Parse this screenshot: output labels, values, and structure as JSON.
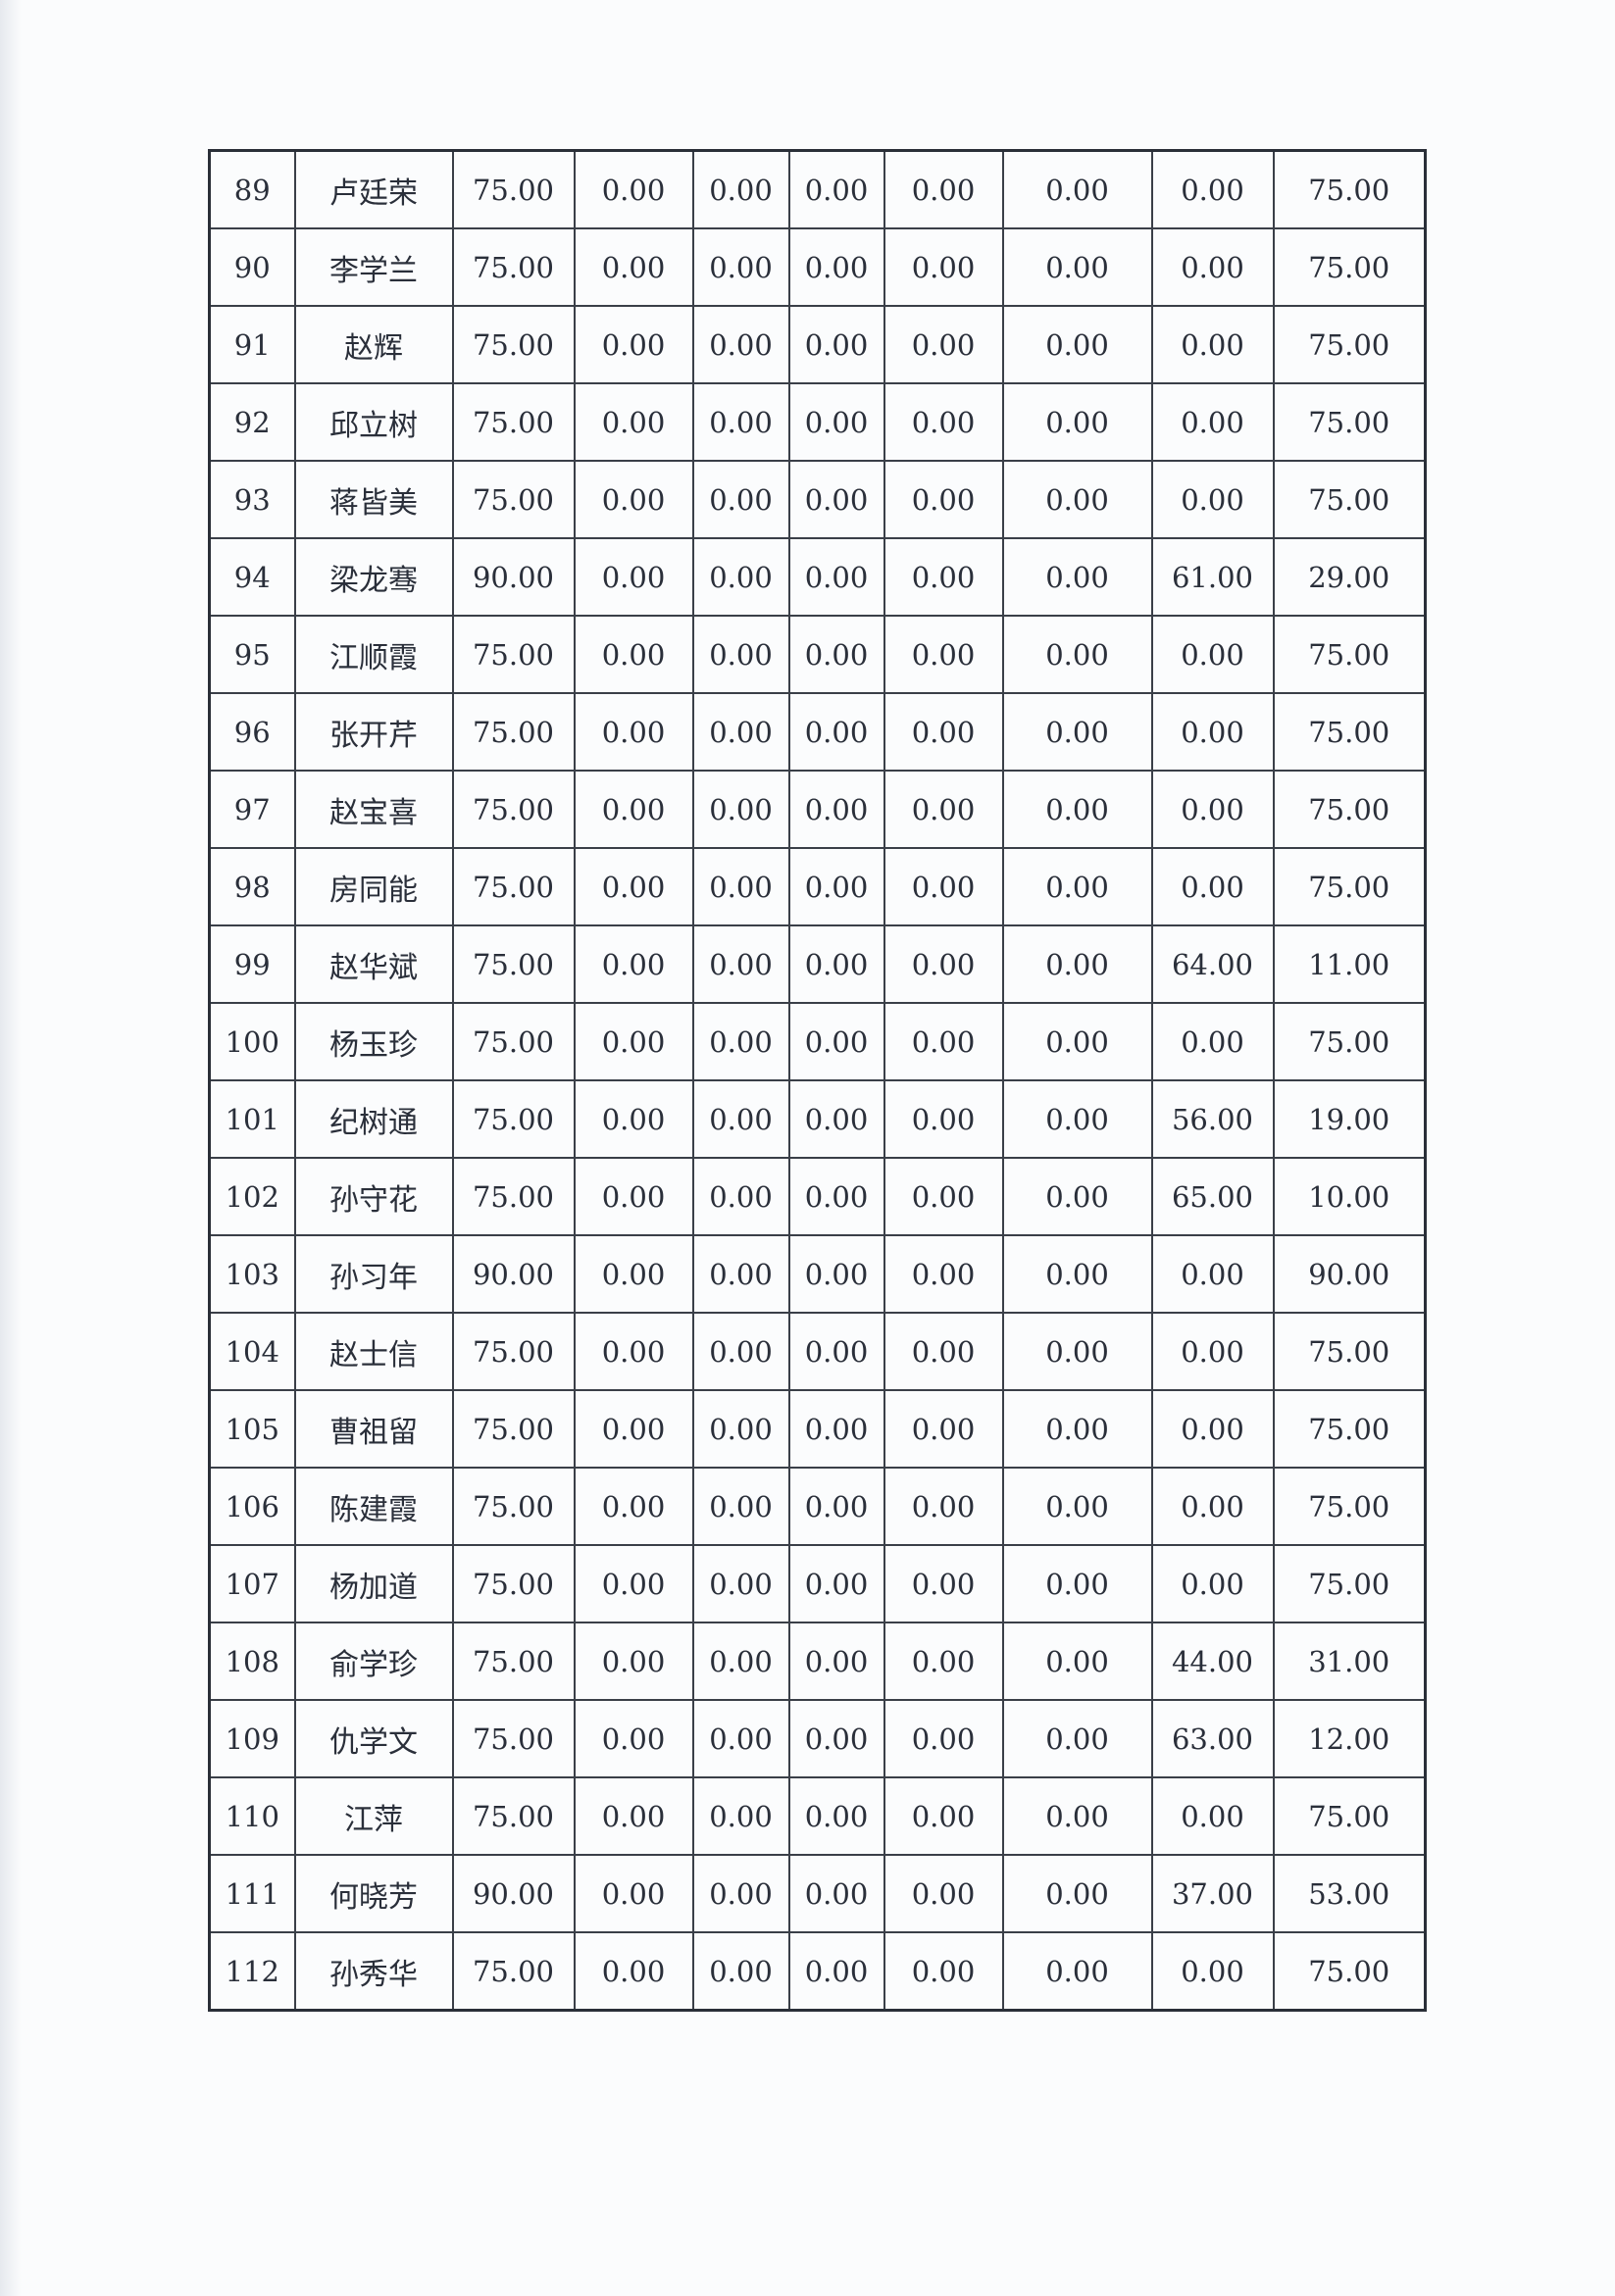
{
  "rows": [
    [
      "89",
      "卢廷荣",
      "75.00",
      "0.00",
      "0.00",
      "0.00",
      "0.00",
      "0.00",
      "0.00",
      "75.00"
    ],
    [
      "90",
      "李学兰",
      "75.00",
      "0.00",
      "0.00",
      "0.00",
      "0.00",
      "0.00",
      "0.00",
      "75.00"
    ],
    [
      "91",
      "赵辉",
      "75.00",
      "0.00",
      "0.00",
      "0.00",
      "0.00",
      "0.00",
      "0.00",
      "75.00"
    ],
    [
      "92",
      "邱立树",
      "75.00",
      "0.00",
      "0.00",
      "0.00",
      "0.00",
      "0.00",
      "0.00",
      "75.00"
    ],
    [
      "93",
      "蒋皆美",
      "75.00",
      "0.00",
      "0.00",
      "0.00",
      "0.00",
      "0.00",
      "0.00",
      "75.00"
    ],
    [
      "94",
      "梁龙骞",
      "90.00",
      "0.00",
      "0.00",
      "0.00",
      "0.00",
      "0.00",
      "61.00",
      "29.00"
    ],
    [
      "95",
      "江顺霞",
      "75.00",
      "0.00",
      "0.00",
      "0.00",
      "0.00",
      "0.00",
      "0.00",
      "75.00"
    ],
    [
      "96",
      "张开芹",
      "75.00",
      "0.00",
      "0.00",
      "0.00",
      "0.00",
      "0.00",
      "0.00",
      "75.00"
    ],
    [
      "97",
      "赵宝喜",
      "75.00",
      "0.00",
      "0.00",
      "0.00",
      "0.00",
      "0.00",
      "0.00",
      "75.00"
    ],
    [
      "98",
      "房同能",
      "75.00",
      "0.00",
      "0.00",
      "0.00",
      "0.00",
      "0.00",
      "0.00",
      "75.00"
    ],
    [
      "99",
      "赵华斌",
      "75.00",
      "0.00",
      "0.00",
      "0.00",
      "0.00",
      "0.00",
      "64.00",
      "11.00"
    ],
    [
      "100",
      "杨玉珍",
      "75.00",
      "0.00",
      "0.00",
      "0.00",
      "0.00",
      "0.00",
      "0.00",
      "75.00"
    ],
    [
      "101",
      "纪树通",
      "75.00",
      "0.00",
      "0.00",
      "0.00",
      "0.00",
      "0.00",
      "56.00",
      "19.00"
    ],
    [
      "102",
      "孙守花",
      "75.00",
      "0.00",
      "0.00",
      "0.00",
      "0.00",
      "0.00",
      "65.00",
      "10.00"
    ],
    [
      "103",
      "孙习年",
      "90.00",
      "0.00",
      "0.00",
      "0.00",
      "0.00",
      "0.00",
      "0.00",
      "90.00"
    ],
    [
      "104",
      "赵士信",
      "75.00",
      "0.00",
      "0.00",
      "0.00",
      "0.00",
      "0.00",
      "0.00",
      "75.00"
    ],
    [
      "105",
      "曹祖留",
      "75.00",
      "0.00",
      "0.00",
      "0.00",
      "0.00",
      "0.00",
      "0.00",
      "75.00"
    ],
    [
      "106",
      "陈建霞",
      "75.00",
      "0.00",
      "0.00",
      "0.00",
      "0.00",
      "0.00",
      "0.00",
      "75.00"
    ],
    [
      "107",
      "杨加道",
      "75.00",
      "0.00",
      "0.00",
      "0.00",
      "0.00",
      "0.00",
      "0.00",
      "75.00"
    ],
    [
      "108",
      "俞学珍",
      "75.00",
      "0.00",
      "0.00",
      "0.00",
      "0.00",
      "0.00",
      "44.00",
      "31.00"
    ],
    [
      "109",
      "仇学文",
      "75.00",
      "0.00",
      "0.00",
      "0.00",
      "0.00",
      "0.00",
      "63.00",
      "12.00"
    ],
    [
      "110",
      "江萍",
      "75.00",
      "0.00",
      "0.00",
      "0.00",
      "0.00",
      "0.00",
      "0.00",
      "75.00"
    ],
    [
      "111",
      "何晓芳",
      "90.00",
      "0.00",
      "0.00",
      "0.00",
      "0.00",
      "0.00",
      "37.00",
      "53.00"
    ],
    [
      "112",
      "孙秀华",
      "75.00",
      "0.00",
      "0.00",
      "0.00",
      "0.00",
      "0.00",
      "0.00",
      "75.00"
    ]
  ]
}
